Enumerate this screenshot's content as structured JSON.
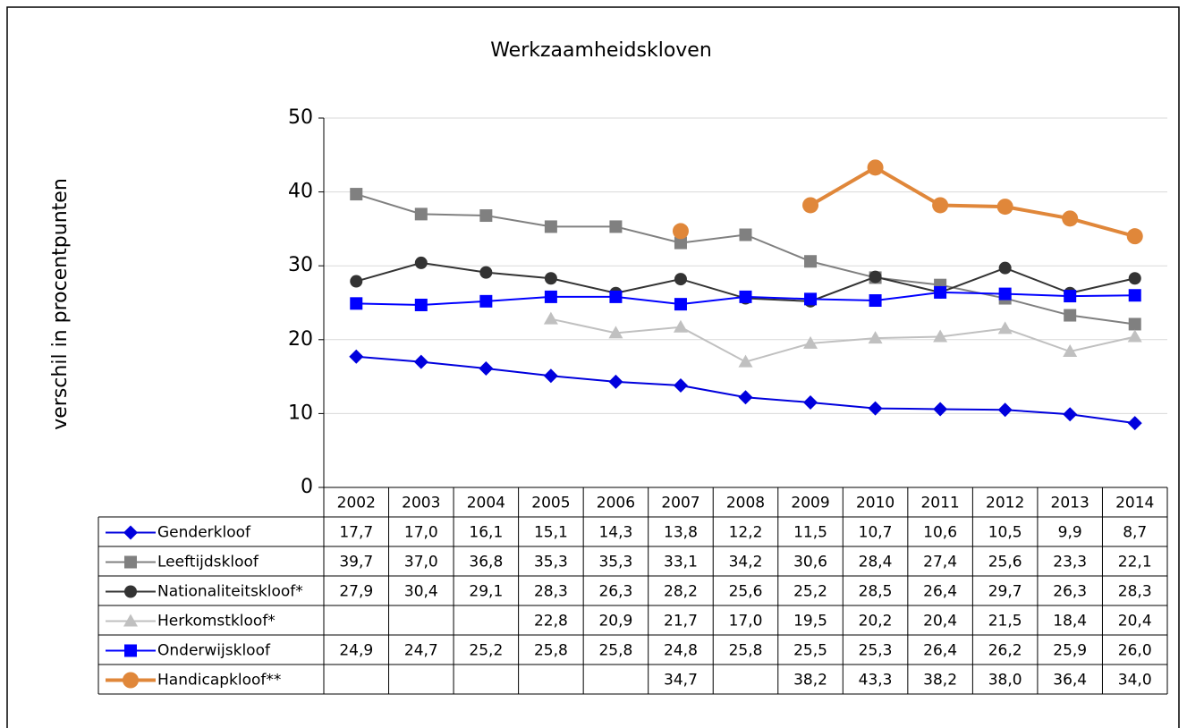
{
  "chart_data": {
    "type": "line",
    "title": "Werkzaamheidskloven",
    "y_label": "verschil in procentpunten",
    "categories": [
      "2002",
      "2003",
      "2004",
      "2005",
      "2006",
      "2007",
      "2008",
      "2009",
      "2010",
      "2011",
      "2012",
      "2013",
      "2014"
    ],
    "ylim": [
      0,
      50
    ],
    "yticks": [
      0,
      10,
      20,
      30,
      40,
      50
    ],
    "grid": true,
    "data_table": true,
    "series": [
      {
        "name": "Genderkloof",
        "color": "#0000dd",
        "marker": "diamond",
        "line_width": 2,
        "values": [
          17.7,
          17.0,
          16.1,
          15.1,
          14.3,
          13.8,
          12.2,
          11.5,
          10.7,
          10.6,
          10.5,
          9.9,
          8.7
        ],
        "value_labels": [
          "17,7",
          "17,0",
          "16,1",
          "15,1",
          "14,3",
          "13,8",
          "12,2",
          "11,5",
          "10,7",
          "10,6",
          "10,5",
          "9,9",
          "8,7"
        ]
      },
      {
        "name": "Leeftijdskloof",
        "color": "#808080",
        "marker": "square",
        "line_width": 2,
        "values": [
          39.7,
          37.0,
          36.8,
          35.3,
          35.3,
          33.1,
          34.2,
          30.6,
          28.4,
          27.4,
          25.6,
          23.3,
          22.1
        ],
        "value_labels": [
          "39,7",
          "37,0",
          "36,8",
          "35,3",
          "35,3",
          "33,1",
          "34,2",
          "30,6",
          "28,4",
          "27,4",
          "25,6",
          "23,3",
          "22,1"
        ]
      },
      {
        "name": "Nationaliteitskloof*",
        "color": "#333333",
        "marker": "circle",
        "line_width": 2,
        "values": [
          27.9,
          30.4,
          29.1,
          28.3,
          26.3,
          28.2,
          25.6,
          25.2,
          28.5,
          26.4,
          29.7,
          26.3,
          28.3
        ],
        "value_labels": [
          "27,9",
          "30,4",
          "29,1",
          "28,3",
          "26,3",
          "28,2",
          "25,6",
          "25,2",
          "28,5",
          "26,4",
          "29,7",
          "26,3",
          "28,3"
        ]
      },
      {
        "name": "Herkomstkloof*",
        "color": "#c0c0c0",
        "marker": "triangle",
        "line_width": 2,
        "values": [
          null,
          null,
          null,
          22.8,
          20.9,
          21.7,
          17.0,
          19.5,
          20.2,
          20.4,
          21.5,
          18.4,
          20.4
        ],
        "value_labels": [
          null,
          null,
          null,
          "22,8",
          "20,9",
          "21,7",
          "17,0",
          "19,5",
          "20,2",
          "20,4",
          "21,5",
          "18,4",
          "20,4"
        ]
      },
      {
        "name": "Onderwijskloof",
        "color": "#0000ff",
        "marker": "square",
        "line_width": 2,
        "values": [
          24.9,
          24.7,
          25.2,
          25.8,
          25.8,
          24.8,
          25.8,
          25.5,
          25.3,
          26.4,
          26.2,
          25.9,
          26.0
        ],
        "value_labels": [
          "24,9",
          "24,7",
          "25,2",
          "25,8",
          "25,8",
          "24,8",
          "25,8",
          "25,5",
          "25,3",
          "26,4",
          "26,2",
          "25,9",
          "26,0"
        ]
      },
      {
        "name": "Handicapkloof**",
        "color": "#e0873a",
        "marker": "circle",
        "line_width": 4,
        "values": [
          null,
          null,
          null,
          null,
          null,
          34.7,
          null,
          38.2,
          43.3,
          38.2,
          38.0,
          36.4,
          34.0
        ],
        "value_labels": [
          null,
          null,
          null,
          null,
          null,
          "34,7",
          null,
          "38,2",
          "43,3",
          "38,2",
          "38,0",
          "36,4",
          "34,0"
        ]
      }
    ]
  }
}
